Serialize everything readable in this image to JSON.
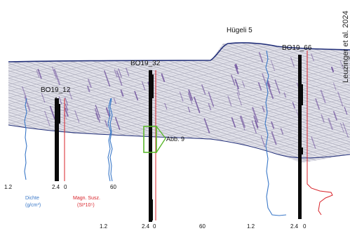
{
  "citation": "Leuzinger et al. 2024",
  "hill_label": "Hügeli 5",
  "boreholes": [
    {
      "id": "BO19_12"
    },
    {
      "id": "BO19_32"
    },
    {
      "id": "BO19_66"
    }
  ],
  "figure_ref": "Abb. 9",
  "density": {
    "label_line1": "Dichte",
    "label_line2": "(g/cm³)"
  },
  "magnetic": {
    "label_line1": "Magn. Susz.",
    "label_line2": "(SI*10⁵)"
  },
  "scales": {
    "bo12": {
      "d_min": "1.2",
      "d_max": "2.4",
      "m_min": "0",
      "m_max": "60"
    },
    "bo32": {
      "d_min": "1.2",
      "d_max": "2.4",
      "m_min": "0",
      "m_max": "60"
    },
    "bo66": {
      "d_min": "1.2",
      "d_max": "2.4",
      "m_min": "0"
    }
  },
  "colors": {
    "density": "#3a78c8",
    "magnetic": "#d8232a",
    "highlight": "#5cb82e",
    "core": "#0a0a0a",
    "radar": "#d9d9e6",
    "layer": "#6a4a9a",
    "horizon": "#23307a"
  }
}
